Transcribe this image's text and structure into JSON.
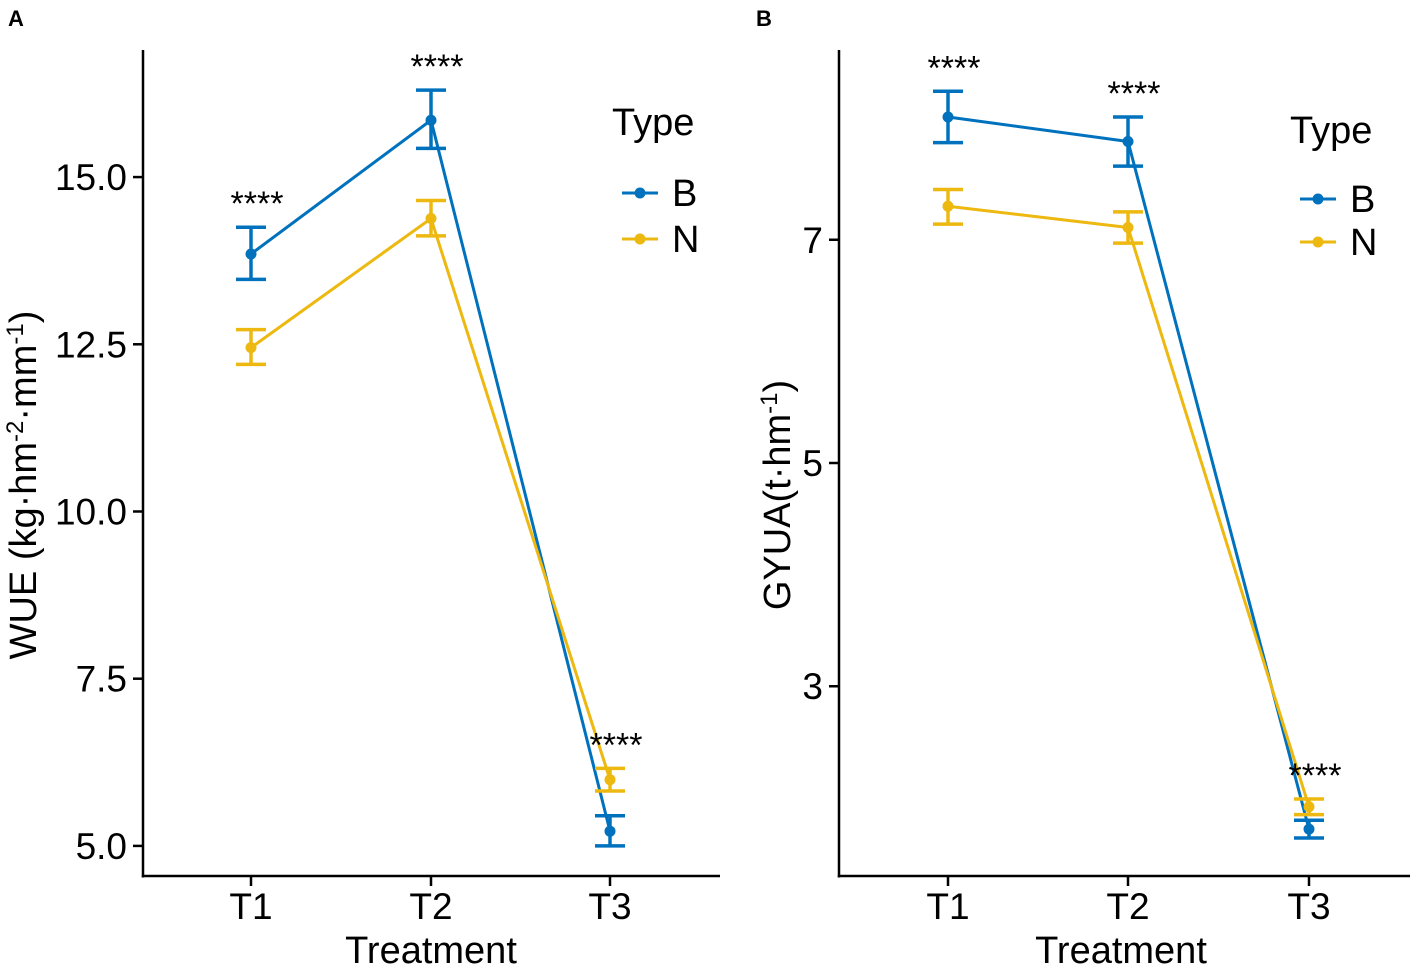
{
  "colors": {
    "B": "#0072BD",
    "N": "#EDB810",
    "axis": "#000000"
  },
  "chart_data": [
    {
      "panel": "A",
      "type": "line",
      "title": "",
      "xlabel": "Treatment",
      "ylabel": {
        "main": "WUE (kg·hm",
        "sup1": "-2",
        "mid": "·mm",
        "sup2": "-1",
        "end": ")"
      },
      "categories": [
        "T1",
        "T2",
        "T3"
      ],
      "ylim": [
        4.55,
        16.9
      ],
      "yticks": [
        5.0,
        7.5,
        10.0,
        12.5,
        15.0
      ],
      "ytick_labels": [
        "5.0",
        "7.5",
        "10.0",
        "12.5",
        "15.0"
      ],
      "legend": {
        "title": "Type",
        "entries": [
          "B",
          "N"
        ],
        "position": "top-right"
      },
      "series": [
        {
          "name": "B",
          "values": [
            13.85,
            15.85,
            5.22
          ],
          "err_low": [
            13.47,
            15.43,
            5.0
          ],
          "err_high": [
            14.25,
            16.3,
            5.45
          ]
        },
        {
          "name": "N",
          "values": [
            12.45,
            14.38,
            5.99
          ],
          "err_low": [
            12.2,
            14.12,
            5.82
          ],
          "err_high": [
            12.72,
            14.65,
            6.16
          ]
        }
      ],
      "significance": [
        "****",
        "****",
        "****"
      ]
    },
    {
      "panel": "B",
      "type": "line",
      "title": "",
      "xlabel": "Treatment",
      "ylabel": {
        "main": "GYUA(t·hm",
        "sup1": "-1",
        "end": ")"
      },
      "categories": [
        "T1",
        "T2",
        "T3"
      ],
      "ylim": [
        1.3,
        8.7
      ],
      "yticks": [
        3,
        5,
        7
      ],
      "ytick_labels": [
        "3",
        "5",
        "7"
      ],
      "legend": {
        "title": "Type",
        "entries": [
          "B",
          "N"
        ],
        "position": "top-right"
      },
      "series": [
        {
          "name": "B",
          "values": [
            8.1,
            7.88,
            1.72
          ],
          "err_low": [
            7.87,
            7.66,
            1.64
          ],
          "err_high": [
            8.33,
            8.1,
            1.8
          ]
        },
        {
          "name": "N",
          "values": [
            7.3,
            7.11,
            1.92
          ],
          "err_low": [
            7.14,
            6.97,
            1.85
          ],
          "err_high": [
            7.45,
            7.25,
            1.99
          ]
        }
      ],
      "significance": [
        "****",
        "****",
        "****"
      ]
    }
  ]
}
